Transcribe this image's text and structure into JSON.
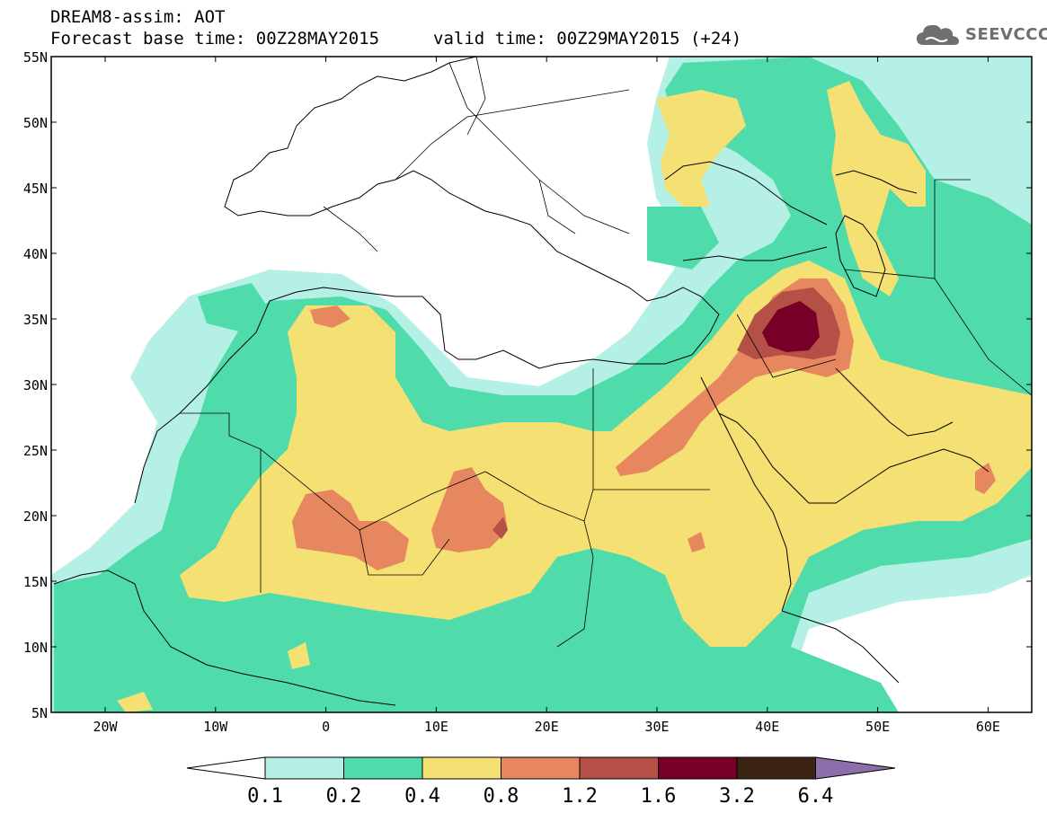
{
  "header": {
    "line1": "DREAM8-assim: AOT",
    "line2": "Forecast base time: 00Z28MAY2015",
    "valid": "valid time: 00Z29MAY2015 (+24)"
  },
  "logo": {
    "text": "SEEVCCC",
    "icon": "cloud-icon"
  },
  "map": {
    "lat_labels": [
      "55N",
      "50N",
      "45N",
      "40N",
      "35N",
      "30N",
      "25N",
      "20N",
      "15N",
      "10N",
      "5N"
    ],
    "lon_labels": [
      "20W",
      "10W",
      "0",
      "10E",
      "20E",
      "30E",
      "40E",
      "50E",
      "60E"
    ]
  },
  "legend": {
    "labels": [
      "0.1",
      "0.2",
      "0.4",
      "0.8",
      "1.2",
      "1.6",
      "3.2",
      "6.4"
    ],
    "colors": {
      "under": "#ffffff",
      "c1": "#b4f0e6",
      "c2": "#50dcaa",
      "c3": "#f5e173",
      "c4": "#e6875f",
      "c5": "#b45046",
      "c6": "#780028",
      "c7": "#3c2314",
      "over": "#8c6eaa"
    }
  }
}
